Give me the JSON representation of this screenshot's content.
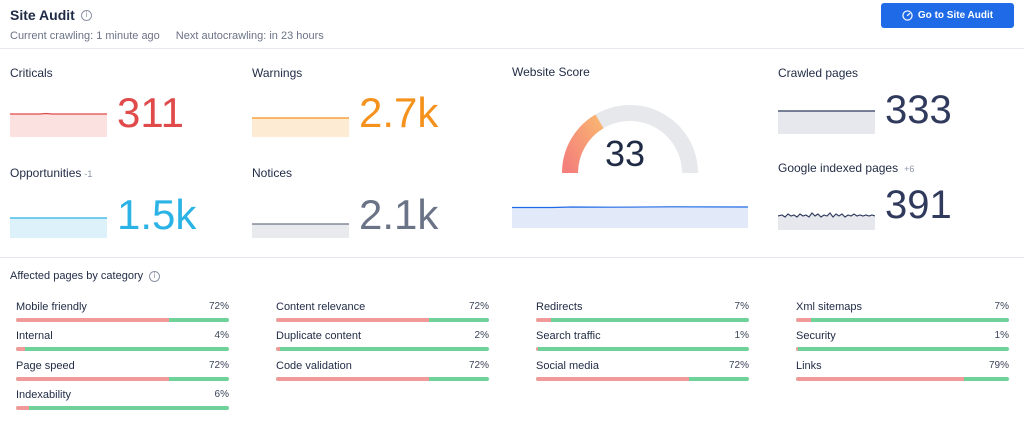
{
  "header": {
    "title": "Site Audit",
    "current_crawling": "Current crawling: 1 minute ago",
    "next_autocrawling": "Next autocrawling: in 23 hours",
    "go_button": "Go to Site Audit",
    "info_icon": "info-icon",
    "button_icon": "gauge-icon",
    "button_color": "#1f6ae6"
  },
  "metrics": {
    "criticals": {
      "label": "Criticals",
      "value": "311",
      "color": "#e04a4a"
    },
    "warnings": {
      "label": "Warnings",
      "value": "2.7k",
      "color": "#f5921e"
    },
    "opportunities": {
      "label": "Opportunities",
      "delta": "-1",
      "value": "1.5k",
      "color": "#2bb3e5"
    },
    "notices": {
      "label": "Notices",
      "value": "2.1k",
      "color": "#6b7387"
    },
    "website_score": {
      "label": "Website Score",
      "value": "33",
      "score": 33,
      "max": 100
    },
    "crawled_pages": {
      "label": "Crawled pages",
      "value": "333",
      "color": "#2f3a5c"
    },
    "google_indexed": {
      "label": "Google indexed pages",
      "delta": "+6",
      "value": "391",
      "color": "#2f3a5c"
    }
  },
  "categories_title": "Affected pages by category",
  "categories": [
    {
      "name": "Mobile friendly",
      "pct": "72%",
      "value": 72
    },
    {
      "name": "Content relevance",
      "pct": "72%",
      "value": 72
    },
    {
      "name": "Redirects",
      "pct": "7%",
      "value": 7
    },
    {
      "name": "Xml sitemaps",
      "pct": "7%",
      "value": 7
    },
    {
      "name": "Internal",
      "pct": "4%",
      "value": 4
    },
    {
      "name": "Duplicate content",
      "pct": "2%",
      "value": 2
    },
    {
      "name": "Search traffic",
      "pct": "1%",
      "value": 1
    },
    {
      "name": "Security",
      "pct": "1%",
      "value": 1
    },
    {
      "name": "Page speed",
      "pct": "72%",
      "value": 72
    },
    {
      "name": "Code validation",
      "pct": "72%",
      "value": 72
    },
    {
      "name": "Social media",
      "pct": "72%",
      "value": 72
    },
    {
      "name": "Links",
      "pct": "79%",
      "value": 79
    },
    {
      "name": "Indexability",
      "pct": "6%",
      "value": 6
    }
  ]
}
